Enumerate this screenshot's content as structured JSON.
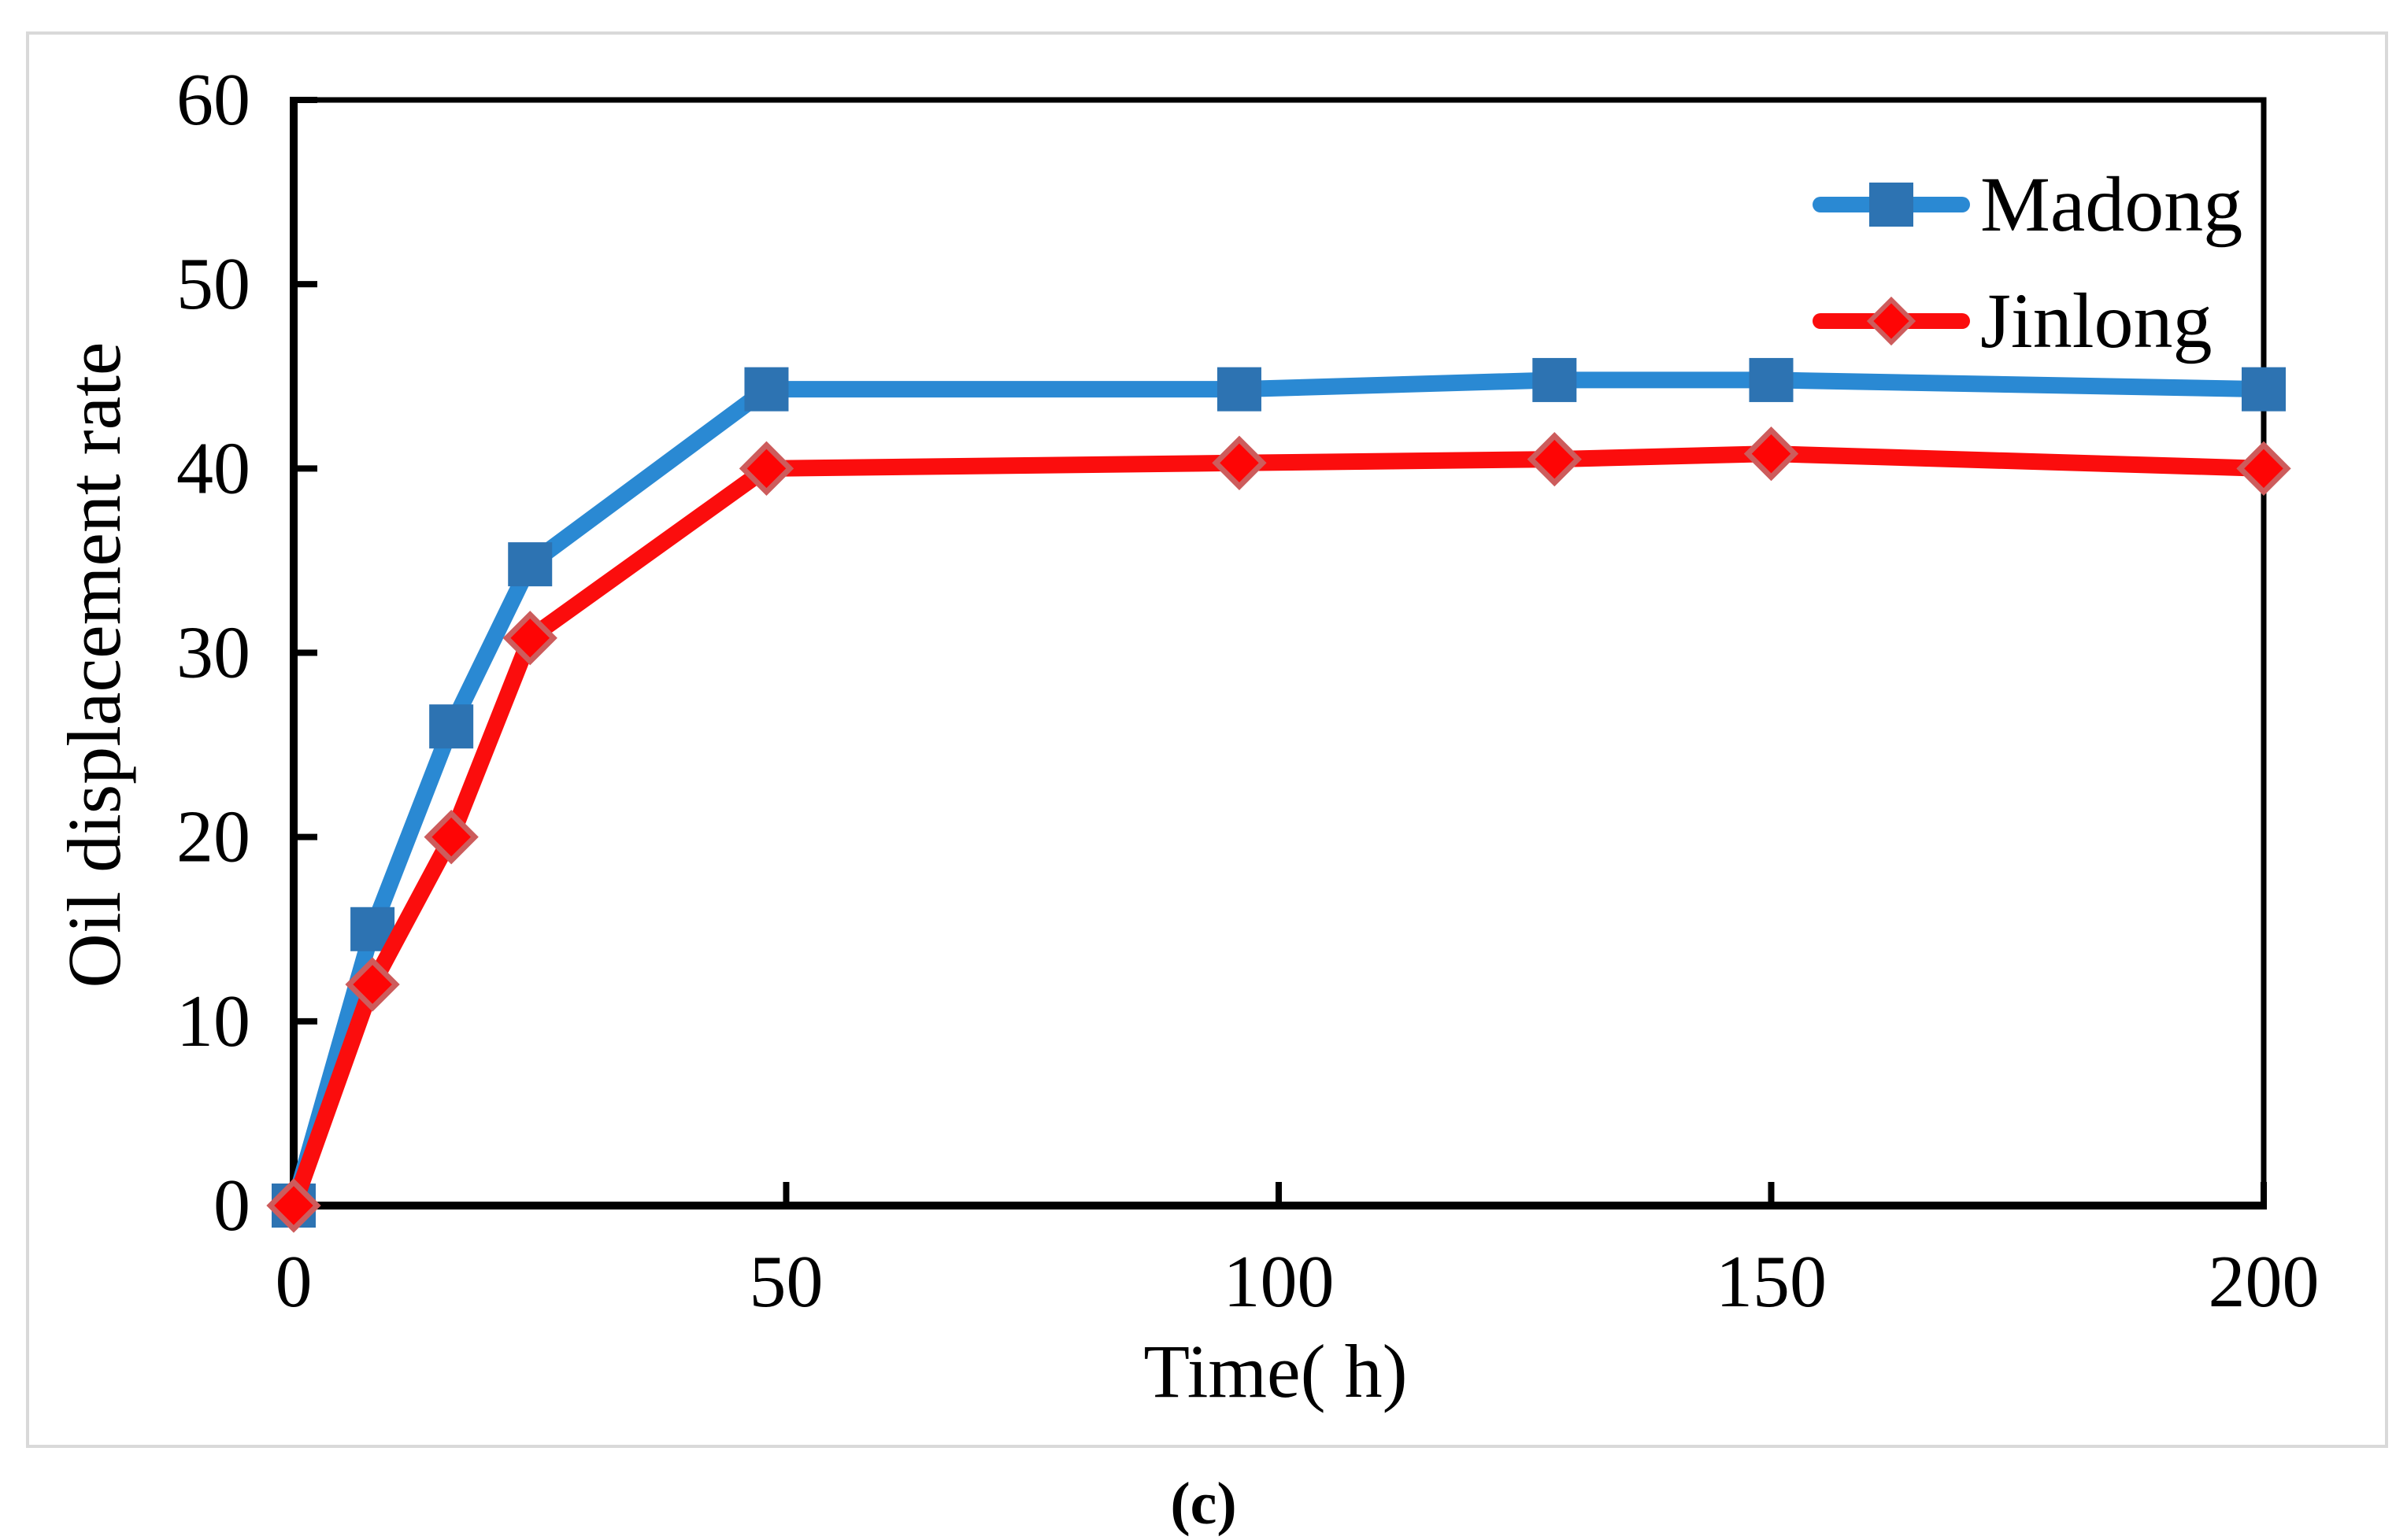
{
  "figure": {
    "caption": "(c)",
    "border_color": "#d9d9d9",
    "background": "#ffffff"
  },
  "chart_data": {
    "type": "line",
    "title": "",
    "xlabel": "Time( h)",
    "ylabel": "Oil displacement rate",
    "x": [
      0,
      8,
      16,
      24,
      48,
      96,
      128,
      150,
      200
    ],
    "series": [
      {
        "name": "Madong",
        "line_color": "#2a89d3",
        "marker": "square",
        "marker_fill": "#2d73b2",
        "marker_border": "#2d73b2",
        "values": [
          0,
          15,
          26,
          34.8,
          44.3,
          44.3,
          44.8,
          44.8,
          44.3
        ]
      },
      {
        "name": "Jinlong",
        "line_color": "#fb0d0d",
        "marker": "diamond",
        "marker_fill": "#fe0505",
        "marker_border": "#cd5c5c",
        "values": [
          0,
          12,
          20,
          30.8,
          40,
          40.3,
          40.5,
          40.8,
          40
        ]
      }
    ],
    "xlim": [
      0,
      200
    ],
    "ylim": [
      0,
      60
    ],
    "xticks": [
      0,
      50,
      100,
      150,
      200
    ],
    "yticks": [
      0,
      10,
      20,
      30,
      40,
      50,
      60
    ],
    "grid": false,
    "legend": {
      "position": "top-right-inside",
      "entries": [
        "Madong",
        "Jinlong"
      ]
    },
    "axis_color": "#000000",
    "tick_label_color": "#000000"
  }
}
